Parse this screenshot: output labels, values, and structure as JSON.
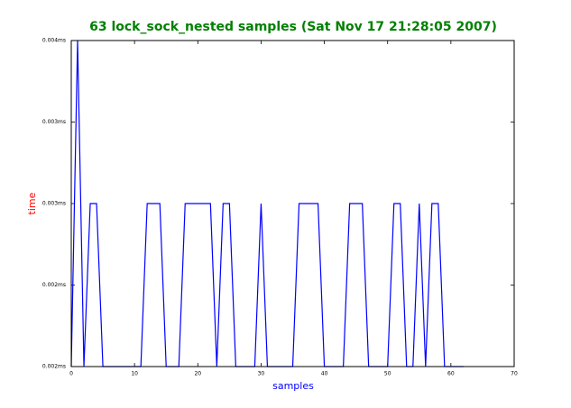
{
  "chart_data": {
    "type": "line",
    "title": "63 lock_sock_nested samples (Sat Nov 17 21:28:05 2007)",
    "x_label": "samples",
    "y_label": "time",
    "x": [
      0,
      1,
      2,
      3,
      4,
      5,
      6,
      7,
      8,
      9,
      10,
      11,
      12,
      13,
      14,
      15,
      16,
      17,
      18,
      19,
      20,
      21,
      22,
      23,
      24,
      25,
      26,
      27,
      28,
      29,
      30,
      31,
      32,
      33,
      34,
      35,
      36,
      37,
      38,
      39,
      40,
      41,
      42,
      43,
      44,
      45,
      46,
      47,
      48,
      49,
      50,
      51,
      52,
      53,
      54,
      55,
      56,
      57,
      58,
      59,
      60,
      61,
      62
    ],
    "series": [
      {
        "name": "lock_sock_nested",
        "color": "#0000ff",
        "values": [
          0.0015,
          0.0035,
          0.0015,
          0.0025,
          0.0025,
          0.0015,
          0.0015,
          0.0015,
          0.0015,
          0.0015,
          0.0015,
          0.0015,
          0.0025,
          0.0025,
          0.0025,
          0.0015,
          0.0015,
          0.0015,
          0.0025,
          0.0025,
          0.0025,
          0.0025,
          0.0025,
          0.0015,
          0.0025,
          0.0025,
          0.0015,
          0.0015,
          0.0015,
          0.0015,
          0.0025,
          0.0015,
          0.0015,
          0.0015,
          0.0015,
          0.0015,
          0.0025,
          0.0025,
          0.0025,
          0.0025,
          0.0015,
          0.0015,
          0.0015,
          0.0015,
          0.0025,
          0.0025,
          0.0025,
          0.0015,
          0.0015,
          0.0015,
          0.0015,
          0.0025,
          0.0025,
          0.0015,
          0.0015,
          0.0025,
          0.0015,
          0.0025,
          0.0025,
          0.0015,
          0.0015,
          0.0015,
          0.0015
        ]
      }
    ],
    "xlim": [
      0,
      70
    ],
    "xticks": [
      0,
      10,
      20,
      30,
      40,
      50,
      60,
      70
    ],
    "ylim": [
      0.0015,
      0.0035
    ],
    "yticks": [
      {
        "value": 0.0015,
        "label": "0.002ms"
      },
      {
        "value": 0.002,
        "label": "0.002ms"
      },
      {
        "value": 0.0025,
        "label": "0.003ms"
      },
      {
        "value": 0.003,
        "label": "0.003ms"
      },
      {
        "value": 0.0035,
        "label": "0.004ms"
      }
    ],
    "grid": false,
    "title_color": "#008000",
    "x_label_color": "#0000ff",
    "y_label_color": "#ff0000"
  }
}
